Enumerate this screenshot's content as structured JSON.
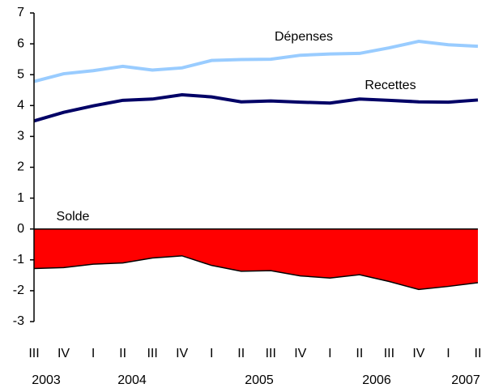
{
  "chart_data": {
    "type": "line",
    "categories": [
      "III",
      "IV",
      "I",
      "II",
      "III",
      "IV",
      "I",
      "II",
      "III",
      "IV",
      "I",
      "II",
      "III",
      "IV",
      "I",
      "II"
    ],
    "years": [
      "2003",
      "2004",
      "2005",
      "2006",
      "2007"
    ],
    "series": [
      {
        "name": "Dépenses",
        "color": "#99ccff",
        "values": [
          4.78,
          5.03,
          5.13,
          5.27,
          5.15,
          5.22,
          5.46,
          5.49,
          5.5,
          5.63,
          5.67,
          5.69,
          5.87,
          6.08,
          5.97,
          5.92
        ]
      },
      {
        "name": "Recettes",
        "color": "#000066",
        "values": [
          3.5,
          3.78,
          3.99,
          4.17,
          4.21,
          4.35,
          4.28,
          4.12,
          4.15,
          4.11,
          4.08,
          4.21,
          4.17,
          4.12,
          4.11,
          4.18
        ]
      },
      {
        "name": "Solde",
        "color": "#ff0000",
        "values": [
          -1.28,
          -1.25,
          -1.14,
          -1.1,
          -0.94,
          -0.87,
          -1.18,
          -1.37,
          -1.35,
          -1.52,
          -1.59,
          -1.48,
          -1.7,
          -1.96,
          -1.86,
          -1.74
        ],
        "fill": "area"
      }
    ],
    "ylim": [
      -3,
      7
    ],
    "yticks": [
      -3,
      -2,
      -1,
      0,
      1,
      2,
      3,
      4,
      5,
      6,
      7
    ],
    "grid": false
  }
}
